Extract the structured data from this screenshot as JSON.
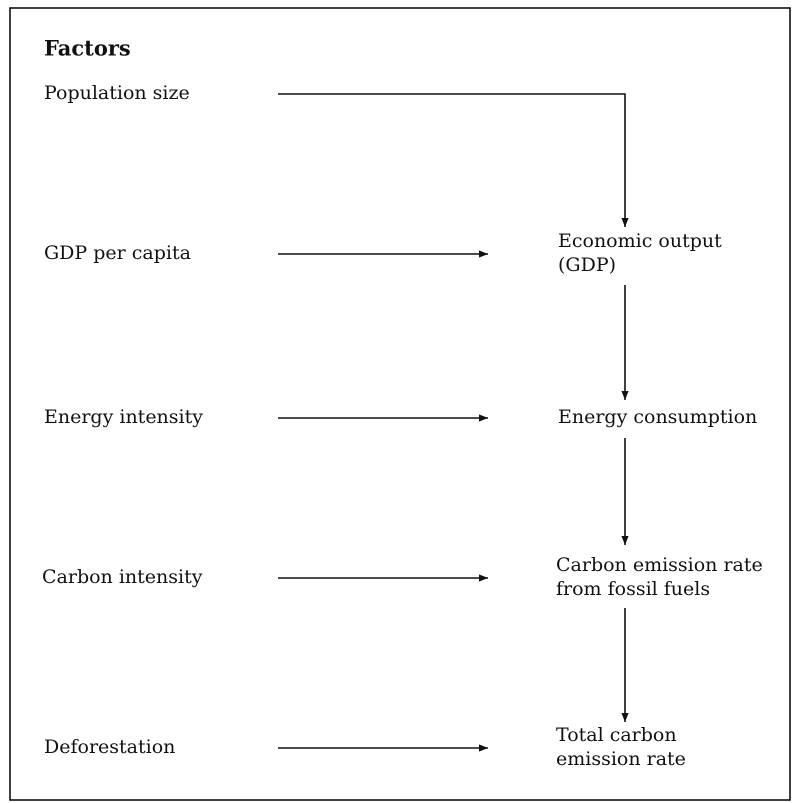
{
  "title": "Factors",
  "factors": [
    "Population size",
    "GDP per capita",
    "Energy intensity",
    "Carbon intensity",
    "Deforestation"
  ],
  "outcomes": [
    [
      "Economic output",
      "(GDP)"
    ],
    [
      "Energy consumption"
    ],
    [
      "Carbon emission rate",
      "from fossil fuels"
    ],
    [
      "Total carbon",
      "emission rate"
    ]
  ]
}
